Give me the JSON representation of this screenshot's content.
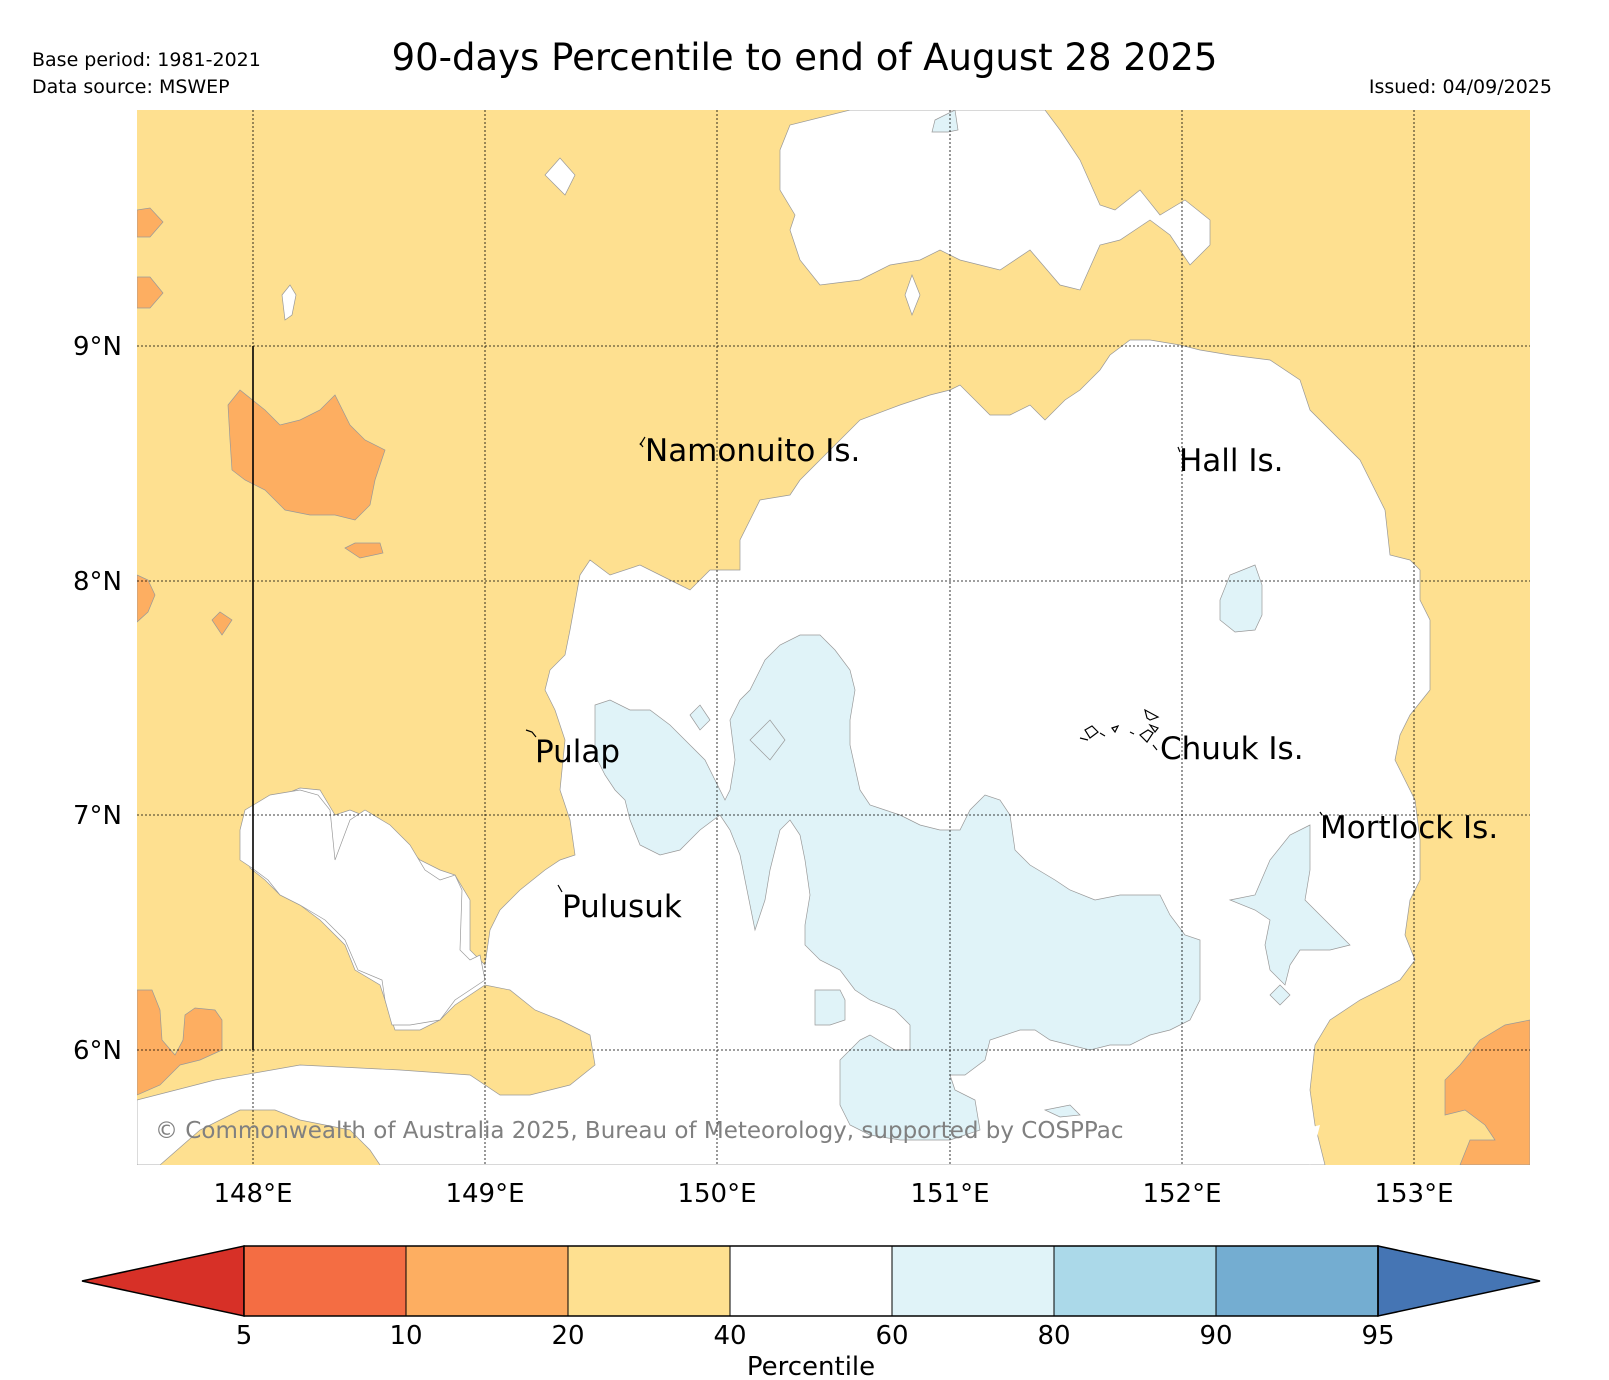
{
  "header": {
    "title": "90-days Percentile to end of August 28 2025",
    "base_period": "Base period: 1981-2021",
    "data_source": "Data source: MSWEP",
    "issued": "Issued: 04/09/2025"
  },
  "map": {
    "lon_ticks": [
      "148°E",
      "149°E",
      "150°E",
      "151°E",
      "152°E",
      "153°E"
    ],
    "lat_ticks": [
      "9°N",
      "8°N",
      "7°N",
      "6°N"
    ],
    "places": [
      "Namonuito Is.",
      "Hall Is.",
      "Pulap",
      "Chuuk Is.",
      "Mortlock Is.",
      "Pulusuk"
    ],
    "copyright": "© Commonwealth of Australia 2025, Bureau of Meteorology, supported by COSPPac",
    "colors": {
      "p20_40": "#fee090",
      "p10_20": "#fdae61",
      "p40_60": "#ffffff",
      "p60_80": "#e0f3f8"
    }
  },
  "legend": {
    "label": "Percentile",
    "ticks": [
      "5",
      "10",
      "20",
      "40",
      "60",
      "80",
      "90",
      "95"
    ],
    "colors": [
      "#d73027",
      "#f46d43",
      "#fdae61",
      "#fee090",
      "#ffffff",
      "#e0f3f8",
      "#abd9e9",
      "#74add1",
      "#4575b4"
    ]
  }
}
